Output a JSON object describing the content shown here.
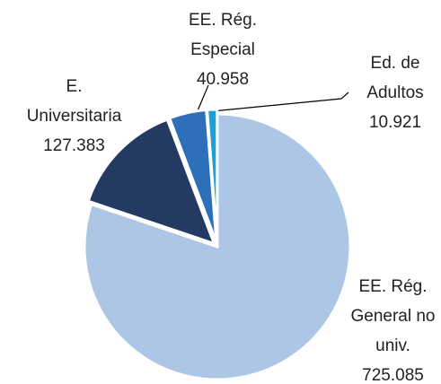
{
  "chart_data": {
    "type": "pie",
    "categories": [
      "EE. Rég. General no univ.",
      "E. Universitaria",
      "EE. Rég. Especial",
      "Ed. de Adultos"
    ],
    "values": [
      725085,
      127383,
      40958,
      10921
    ],
    "value_labels": [
      "725.085",
      "127.383",
      "40.958",
      "10.921"
    ],
    "colors": [
      "#adc6e5",
      "#253a63",
      "#2e6fba",
      "#1e9fd8"
    ]
  }
}
